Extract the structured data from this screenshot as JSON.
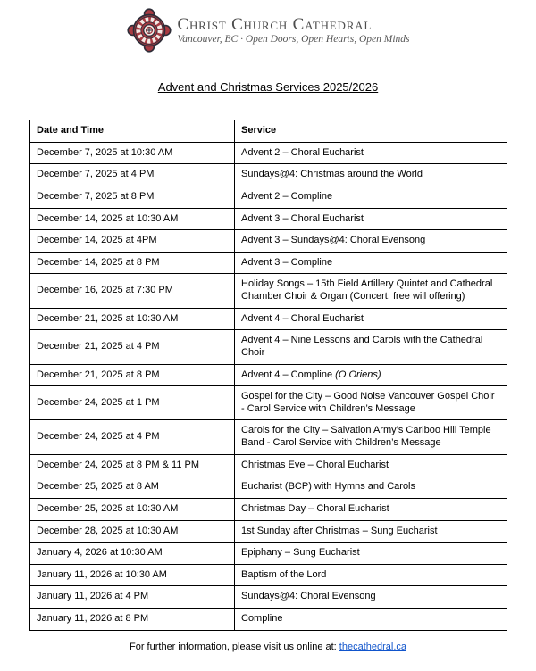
{
  "header": {
    "org_name": "Christ Church Cathedral",
    "tagline": "Vancouver, BC · Open Doors, Open Hearts, Open Minds",
    "logo_icon": "cathedral-crest-icon"
  },
  "title": "Advent and Christmas Services 2025/2026",
  "colors": {
    "logo_red": "#a93b42",
    "logo_outline": "#2e2d38",
    "logo_cream": "#f3e9e4",
    "header_text_gray": "#4d4d4d",
    "link_blue": "#1155cc",
    "table_border": "#000000"
  },
  "table": {
    "columns": [
      "Date and Time",
      "Service"
    ],
    "rows": [
      {
        "date": "December 7, 2025 at 10:30 AM",
        "service": "Advent 2 – Choral Eucharist"
      },
      {
        "date": "December 7, 2025 at 4 PM",
        "service": "Sundays@4: Christmas around the World"
      },
      {
        "date": "December 7, 2025 at 8 PM",
        "service": "Advent 2 – Compline"
      },
      {
        "date": "December 14, 2025 at 10:30 AM",
        "service": "Advent 3 – Choral Eucharist"
      },
      {
        "date": "December 14, 2025 at 4PM",
        "service": "Advent 3 – Sundays@4: Choral Evensong"
      },
      {
        "date": "December 14, 2025 at 8 PM",
        "service": "Advent 3 – Compline"
      },
      {
        "date": "December 16, 2025 at 7:30 PM",
        "service": "Holiday Songs – 15th Field Artillery Quintet and Cathedral Chamber Choir & Organ (Concert: free will offering)"
      },
      {
        "date": "December 21, 2025 at 10:30 AM",
        "service": "Advent 4 – Choral Eucharist"
      },
      {
        "date": "December 21, 2025 at 4 PM",
        "service": "Advent 4 – Nine Lessons and Carols with the Cathedral Choir"
      },
      {
        "date": "December 21, 2025 at 8 PM",
        "service": "Advent 4 – Compline",
        "service_italic": "(O Oriens)"
      },
      {
        "date": "December 24, 2025 at 1 PM",
        "service": "Gospel for the City – Good Noise Vancouver Gospel Choir - Carol Service with Children’s Message"
      },
      {
        "date": "December 24, 2025 at 4 PM",
        "service": "Carols for the City – Salvation Army’s Cariboo Hill Temple Band - Carol Service with Children’s Message"
      },
      {
        "date": "December 24, 2025 at 8 PM & 11 PM",
        "service": "Christmas Eve – Choral Eucharist"
      },
      {
        "date": "December 25, 2025 at 8 AM",
        "service": "Eucharist (BCP) with Hymns and Carols"
      },
      {
        "date": "December 25, 2025 at 10:30 AM",
        "service": "Christmas Day – Choral Eucharist"
      },
      {
        "date": "December 28, 2025 at 10:30 AM",
        "service": "1st Sunday after Christmas – Sung Eucharist"
      },
      {
        "date": "January 4, 2026 at 10:30 AM",
        "service": "Epiphany – Sung Eucharist"
      },
      {
        "date": "January 11, 2026 at 10:30 AM",
        "service": "Baptism of the Lord"
      },
      {
        "date": "January 11, 2026 at 4 PM",
        "service": "Sundays@4: Choral Evensong"
      },
      {
        "date": "January 11, 2026 at 8 PM",
        "service": "Compline"
      }
    ]
  },
  "footer": {
    "text": "For further information, please visit us online at: ",
    "link": "thecathedral.ca"
  }
}
